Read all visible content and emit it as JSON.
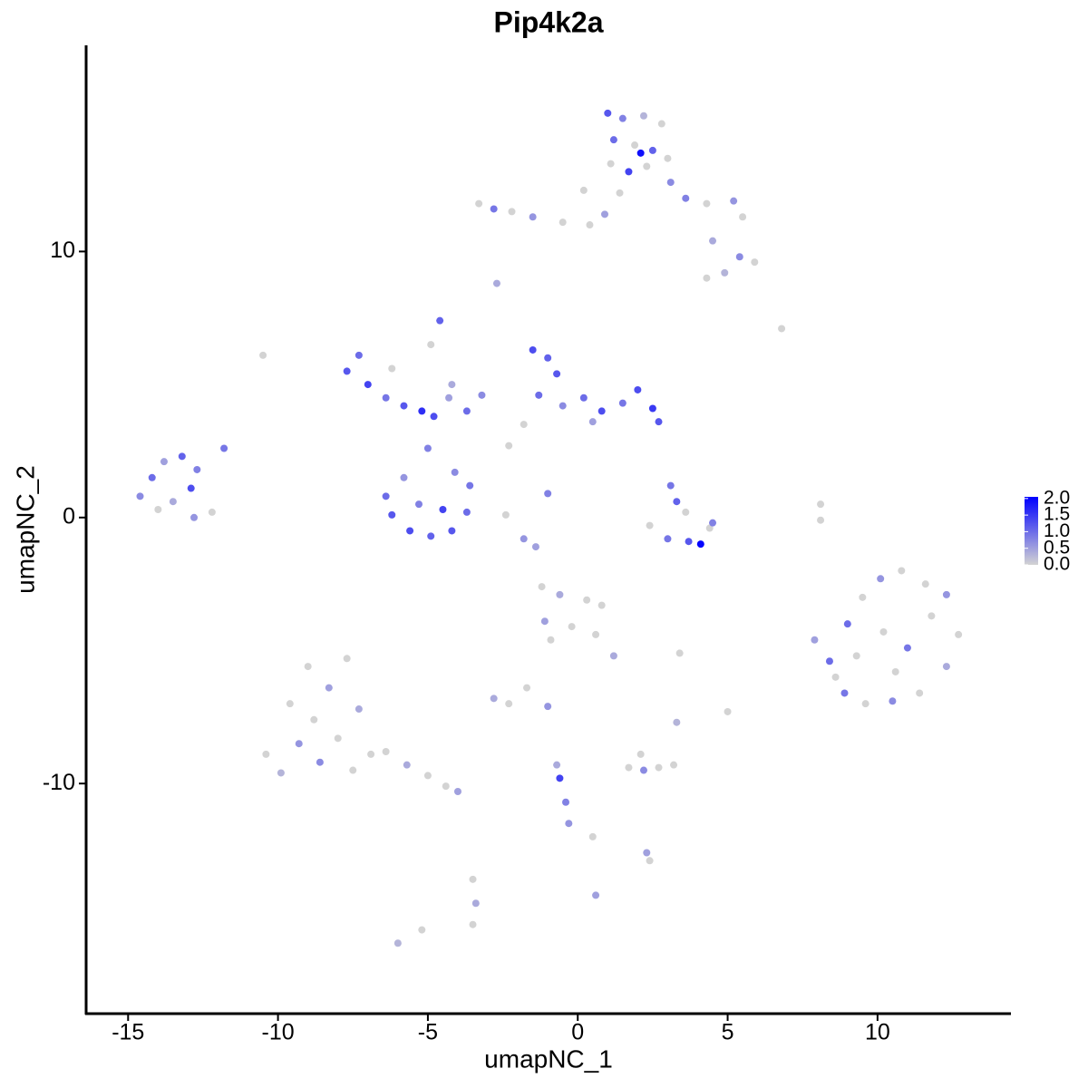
{
  "chart_data": {
    "type": "scatter",
    "title": "Pip4k2a",
    "x_label": "umapNC_1",
    "y_label": "umapNC_2",
    "xlim": [
      -16.4,
      14.45
    ],
    "ylim": [
      -18.65,
      17.75
    ],
    "xticks": [
      -15,
      -10,
      -5,
      0,
      5,
      10
    ],
    "yticks": [
      -10,
      0,
      10
    ],
    "colors": [
      "#d3d3d3",
      "#0000ff"
    ],
    "colorbar": {
      "lim": [
        0,
        2.05
      ],
      "ticks": [
        {
          "value": 0,
          "label": "0.0"
        },
        0.5,
        {
          "value": 1,
          "label": "1.0"
        },
        1.5,
        {
          "value": 2,
          "label": "2.0"
        }
      ]
    },
    "x": [
      1.0,
      1.5,
      2.2,
      2.8,
      1.2,
      1.9,
      2.5,
      3.0,
      1.1,
      1.7,
      2.3,
      2.1,
      3.1,
      1.4,
      -3.3,
      -2.8,
      -2.2,
      -1.5,
      -0.5,
      0.4,
      0.9,
      0.2,
      3.6,
      4.3,
      5.2,
      5.5,
      4.5,
      5.4,
      5.9,
      4.9,
      4.3,
      -14.6,
      -14.2,
      -13.8,
      -13.2,
      -12.7,
      -13.5,
      -12.9,
      -12.2,
      -12.8,
      -11.8,
      -14.0,
      -7.7,
      -7.3,
      -7.0,
      -6.4,
      -5.8,
      -5.2,
      -4.8,
      -4.3,
      -3.7,
      -4.9,
      -4.6,
      -4.2,
      -6.2,
      -3.2,
      -5.0,
      -6.4,
      -6.2,
      -5.6,
      -4.9,
      -4.2,
      -3.7,
      -3.6,
      -5.3,
      -4.5,
      -5.8,
      -4.1,
      -1.5,
      -1.0,
      -0.7,
      -1.3,
      -0.5,
      0.2,
      0.8,
      1.5,
      2.0,
      2.5,
      2.7,
      -1.8,
      0.5,
      -2.3,
      -1.0,
      3.1,
      3.3,
      3.6,
      2.4,
      3.0,
      3.7,
      4.1,
      4.4,
      4.5,
      7.9,
      8.4,
      8.9,
      9.5,
      10.1,
      10.8,
      11.6,
      12.3,
      12.7,
      12.3,
      11.4,
      10.5,
      9.6,
      10.2,
      11.0,
      9.3,
      11.8,
      10.6,
      9.0,
      8.6,
      -10.4,
      -9.9,
      -9.6,
      -9.3,
      -9.0,
      -8.8,
      -8.6,
      -8.3,
      -8.0,
      -7.7,
      -7.5,
      -7.3,
      -6.9,
      -6.4,
      -5.7,
      -5.0,
      -4.4,
      -4.0,
      -1.2,
      -0.6,
      0.3,
      0.8,
      -1.1,
      -0.2,
      0.6,
      1.2,
      -0.9,
      1.7,
      2.2,
      2.7,
      3.2,
      2.1,
      -3.5,
      -3.4,
      -3.5,
      -0.7,
      -0.6,
      -0.4,
      -0.3,
      0.5,
      2.3,
      2.4,
      -2.8,
      -2.3,
      -1.7,
      -1.0,
      5.0,
      3.4,
      3.3,
      -10.5,
      6.8,
      -2.7,
      8.1,
      8.1,
      -6.0,
      -2.4,
      -1.8,
      -1.4,
      0.6,
      -5.2
    ],
    "values": [
      15.2,
      15.0,
      15.1,
      14.8,
      14.2,
      14.0,
      13.8,
      13.5,
      13.3,
      13.0,
      13.2,
      13.7,
      12.6,
      12.2,
      11.8,
      11.6,
      11.5,
      11.3,
      11.1,
      11.0,
      11.4,
      12.3,
      12.0,
      11.8,
      11.9,
      11.3,
      10.4,
      9.8,
      9.6,
      9.2,
      9.0,
      0.8,
      1.5,
      2.1,
      2.3,
      1.8,
      0.6,
      1.1,
      0.2,
      0.0,
      2.6,
      0.3,
      5.5,
      6.1,
      5.0,
      4.5,
      4.2,
      4.0,
      3.8,
      4.5,
      4.0,
      6.5,
      7.4,
      5.0,
      5.6,
      4.6,
      2.6,
      0.8,
      0.1,
      -0.5,
      -0.7,
      -0.5,
      0.2,
      1.2,
      0.5,
      0.3,
      1.5,
      1.7,
      6.3,
      6.0,
      5.4,
      4.6,
      4.2,
      4.5,
      4.0,
      4.3,
      4.8,
      4.1,
      3.6,
      3.5,
      3.6,
      2.7,
      0.9,
      1.2,
      0.6,
      0.2,
      -0.3,
      -0.8,
      -0.9,
      -1.0,
      -0.4,
      -0.2,
      -4.6,
      -5.4,
      -6.6,
      -3.0,
      -2.3,
      -2.0,
      -2.5,
      -2.9,
      -4.4,
      -5.6,
      -6.6,
      -6.9,
      -7.0,
      -4.3,
      -4.9,
      -5.2,
      -3.7,
      -5.8,
      -4.0,
      -6.0,
      -8.9,
      -9.6,
      -7.0,
      -8.5,
      -5.6,
      -7.6,
      -9.2,
      -6.4,
      -8.3,
      -5.3,
      -9.5,
      -7.2,
      -8.9,
      -8.8,
      -9.3,
      -9.7,
      -10.1,
      -10.3,
      -2.6,
      -2.9,
      -3.1,
      -3.3,
      -3.9,
      -4.1,
      -4.4,
      -5.2,
      -4.6,
      -9.4,
      -9.5,
      -9.4,
      -9.3,
      -8.9,
      -13.6,
      -14.5,
      -15.3,
      -9.3,
      -9.8,
      -10.7,
      -11.5,
      -12.0,
      -12.6,
      -12.9,
      -6.8,
      -7.0,
      -6.4,
      -7.1,
      -7.3,
      -5.1,
      -7.7,
      6.1,
      7.1,
      8.8,
      0.5,
      -0.1,
      -16.0,
      0.1,
      -0.8,
      -1.1,
      -14.2,
      -15.5
    ],
    "expression": [
      1.2,
      0.8,
      0.3,
      0,
      1.0,
      0,
      1.1,
      0,
      0,
      1.4,
      0,
      1.9,
      0.7,
      0,
      0,
      0.9,
      0,
      0.6,
      0,
      0,
      0.5,
      0,
      0.8,
      0,
      0.6,
      0,
      0.4,
      0.7,
      0,
      0.3,
      0,
      0.7,
      1.0,
      0.5,
      1.1,
      0.8,
      0.4,
      1.3,
      0,
      0.6,
      0.9,
      0,
      1.2,
      1.0,
      1.4,
      0.9,
      1.2,
      1.6,
      1.3,
      0.5,
      1.0,
      0,
      1.1,
      0.4,
      0,
      0.7,
      0.8,
      1.0,
      1.2,
      1.3,
      1.1,
      1.2,
      1.0,
      0.9,
      0.8,
      1.4,
      0.6,
      0.7,
      1.3,
      1.1,
      1.2,
      1.0,
      0.7,
      1.0,
      1.3,
      0.9,
      1.3,
      1.5,
      1.2,
      0,
      0.5,
      0,
      0.8,
      0.9,
      1.1,
      0,
      0,
      0.9,
      1.2,
      2.0,
      0,
      0.8,
      0.5,
      1.0,
      0.9,
      0,
      0.6,
      0,
      0,
      0.6,
      0,
      0.4,
      0,
      0.7,
      0,
      0,
      0.9,
      0,
      0,
      0,
      1.0,
      0,
      0,
      0.3,
      0,
      0.6,
      0,
      0,
      0.7,
      0.5,
      0,
      0,
      0,
      0.4,
      0,
      0,
      0.4,
      0,
      0,
      0.5,
      0,
      0.4,
      0,
      0,
      0.5,
      0,
      0,
      0.4,
      0,
      0,
      0.7,
      0,
      0,
      0,
      0,
      0.4,
      0,
      0.4,
      1.4,
      0.8,
      0.6,
      0,
      0.5,
      0,
      0.4,
      0,
      0,
      0.6,
      0,
      0,
      0.3,
      0,
      0,
      0.4,
      0,
      0,
      0.3,
      0,
      0.6,
      0.5,
      0.5,
      0
    ]
  }
}
